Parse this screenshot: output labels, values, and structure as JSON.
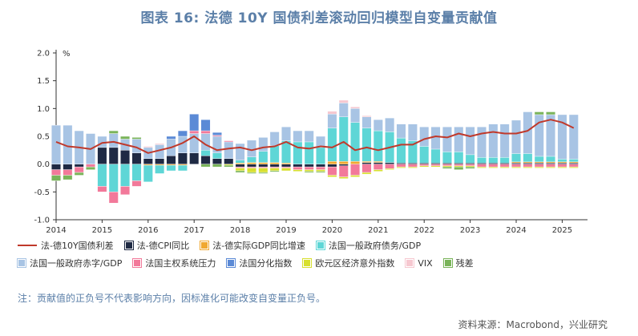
{
  "title": "图表 16: 法德 10Y 国债利差滚动回归模型自变量贡献值",
  "note": "注：贡献值的正负号不代表影响方向，因标准化可能改变自变量正负号。",
  "source": "资料来源：Macrobond，兴业研究",
  "chart_data": {
    "type": "bar",
    "stacked": true,
    "y_unit": "%",
    "ylim": [
      -1.0,
      2.0
    ],
    "yticks": [
      "2.0",
      "1.5",
      "1.0",
      "0.5",
      "0.0",
      "-0.5",
      "-1.0"
    ],
    "x_range": [
      2014.0,
      2025.55
    ],
    "xticks": [
      "2014",
      "2015",
      "2016",
      "2017",
      "2018",
      "2019",
      "2020",
      "2021",
      "2022",
      "2023",
      "2024",
      "2025"
    ],
    "legend": [
      {
        "name": "法-德10Y国债利差",
        "kind": "line",
        "color": "#c0392b"
      },
      {
        "name": "法-德CPI同比",
        "kind": "bar",
        "color": "#1f2a44"
      },
      {
        "name": "法-德实际GDP同比增速",
        "kind": "bar",
        "color": "#f0a830"
      },
      {
        "name": "法国一般政府债务/GDP",
        "kind": "bar",
        "color": "#5ed6d6"
      },
      {
        "name": "法国一般政府赤字/GDP",
        "kind": "bar",
        "color": "#a8c4e4"
      },
      {
        "name": "法国主权系统压力",
        "kind": "bar",
        "color": "#f2799a"
      },
      {
        "name": "法国分化指数",
        "kind": "bar",
        "color": "#5b8ad6"
      },
      {
        "name": "欧元区经济意外指数",
        "kind": "bar",
        "color": "#d8e030"
      },
      {
        "name": "VIX",
        "kind": "bar",
        "color": "#f6c8d0"
      },
      {
        "name": "残差",
        "kind": "bar",
        "color": "#7ab45a"
      }
    ],
    "x": [
      2014.0,
      2014.25,
      2014.5,
      2014.75,
      2015.0,
      2015.25,
      2015.5,
      2015.75,
      2016.0,
      2016.25,
      2016.5,
      2016.75,
      2017.0,
      2017.25,
      2017.5,
      2017.75,
      2018.0,
      2018.25,
      2018.5,
      2018.75,
      2019.0,
      2019.25,
      2019.5,
      2019.75,
      2020.0,
      2020.25,
      2020.5,
      2020.75,
      2021.0,
      2021.25,
      2021.5,
      2021.75,
      2022.0,
      2022.25,
      2022.5,
      2022.75,
      2023.0,
      2023.25,
      2023.5,
      2023.75,
      2024.0,
      2024.25,
      2024.5,
      2024.75,
      2025.0,
      2025.25
    ],
    "spread": [
      0.4,
      0.32,
      0.3,
      0.27,
      0.38,
      0.4,
      0.35,
      0.3,
      0.2,
      0.25,
      0.3,
      0.38,
      0.5,
      0.35,
      0.25,
      0.28,
      0.3,
      0.25,
      0.3,
      0.32,
      0.4,
      0.3,
      0.28,
      0.32,
      0.3,
      0.4,
      0.25,
      0.3,
      0.25,
      0.3,
      0.35,
      0.35,
      0.45,
      0.5,
      0.48,
      0.55,
      0.5,
      0.55,
      0.58,
      0.55,
      0.55,
      0.6,
      0.75,
      0.8,
      0.75,
      0.65
    ],
    "series": [
      {
        "name": "法-德CPI同比",
        "values": [
          -0.1,
          -0.1,
          -0.05,
          0.0,
          0.3,
          0.3,
          0.25,
          0.2,
          0.1,
          0.1,
          0.15,
          0.2,
          0.2,
          0.15,
          0.1,
          0.1,
          -0.05,
          -0.05,
          -0.05,
          -0.05,
          -0.05,
          -0.05,
          -0.05,
          -0.05,
          -0.05,
          -0.03,
          0.0,
          0.03,
          0.03,
          0.03,
          0.02,
          0.02,
          0.02,
          0.02,
          0.02,
          0.02,
          0.02,
          0.02,
          0.02,
          0.02,
          0.02,
          0.02,
          0.02,
          0.02,
          0.02,
          0.02
        ]
      },
      {
        "name": "法-德实际GDP同比增速",
        "values": [
          0.0,
          0.0,
          0.0,
          0.0,
          0.0,
          0.0,
          0.0,
          0.0,
          -0.02,
          -0.02,
          -0.02,
          -0.02,
          0.0,
          0.0,
          0.0,
          0.0,
          0.02,
          0.03,
          0.03,
          0.03,
          0.02,
          0.0,
          0.0,
          0.0,
          0.05,
          0.05,
          0.05,
          0.02,
          0.02,
          0.0,
          0.0,
          0.0,
          0.0,
          0.0,
          0.0,
          0.0,
          0.0,
          0.0,
          0.0,
          0.0,
          0.02,
          0.02,
          0.02,
          0.02,
          0.02,
          0.02
        ]
      },
      {
        "name": "法国一般政府债务/GDP",
        "values": [
          0.0,
          0.0,
          0.0,
          0.0,
          -0.4,
          -0.5,
          -0.4,
          -0.3,
          -0.3,
          -0.15,
          -0.1,
          -0.1,
          0.0,
          0.1,
          0.1,
          0.0,
          0.05,
          0.1,
          0.2,
          0.3,
          0.4,
          0.4,
          0.4,
          0.3,
          0.6,
          0.8,
          0.7,
          0.6,
          0.55,
          0.55,
          0.45,
          0.4,
          0.3,
          0.25,
          0.2,
          0.2,
          0.15,
          0.1,
          0.1,
          0.1,
          0.15,
          0.15,
          0.1,
          0.1,
          0.05,
          0.05
        ]
      },
      {
        "name": "法国一般政府赤字/GDP",
        "values": [
          0.7,
          0.7,
          0.6,
          0.55,
          0.2,
          0.25,
          0.2,
          0.25,
          0.2,
          0.25,
          0.3,
          0.3,
          0.35,
          0.3,
          0.3,
          0.3,
          0.3,
          0.3,
          0.25,
          0.25,
          0.25,
          0.2,
          0.2,
          0.2,
          0.25,
          0.25,
          0.25,
          0.2,
          0.2,
          0.25,
          0.25,
          0.3,
          0.35,
          0.4,
          0.45,
          0.45,
          0.5,
          0.55,
          0.6,
          0.6,
          0.6,
          0.75,
          0.75,
          0.75,
          0.8,
          0.8
        ]
      },
      {
        "name": "法国主权系统压力",
        "values": [
          -0.1,
          -0.1,
          -0.1,
          -0.05,
          -0.1,
          -0.2,
          -0.15,
          -0.1,
          0.0,
          0.0,
          0.0,
          0.0,
          0.05,
          0.05,
          0.02,
          0.02,
          -0.02,
          -0.02,
          -0.02,
          -0.02,
          -0.02,
          -0.05,
          -0.05,
          -0.05,
          -0.15,
          -0.2,
          -0.2,
          -0.15,
          -0.1,
          -0.08,
          -0.05,
          -0.05,
          -0.03,
          -0.03,
          -0.03,
          -0.03,
          -0.03,
          -0.05,
          -0.05,
          -0.05,
          -0.05,
          -0.05,
          -0.05,
          -0.05,
          -0.05,
          -0.05
        ]
      },
      {
        "name": "法国分化指数",
        "values": [
          0.0,
          0.0,
          0.0,
          0.0,
          0.0,
          0.0,
          0.0,
          0.0,
          0.0,
          0.0,
          0.05,
          0.1,
          0.3,
          0.2,
          0.05,
          0.0,
          0.0,
          0.0,
          0.0,
          0.0,
          0.0,
          0.0,
          0.0,
          0.0,
          0.0,
          0.0,
          0.0,
          0.0,
          0.0,
          0.0,
          0.0,
          0.0,
          0.0,
          0.0,
          0.0,
          0.0,
          0.0,
          0.0,
          0.0,
          0.0,
          0.0,
          0.0,
          0.0,
          0.0,
          0.0,
          0.0
        ]
      },
      {
        "name": "欧元区经济意外指数",
        "values": [
          0.0,
          0.0,
          0.0,
          0.0,
          0.0,
          0.0,
          0.0,
          0.0,
          0.0,
          0.0,
          0.0,
          0.0,
          0.0,
          0.0,
          0.0,
          -0.02,
          -0.05,
          -0.08,
          -0.08,
          -0.05,
          -0.05,
          -0.03,
          -0.03,
          -0.03,
          -0.03,
          -0.03,
          -0.03,
          -0.03,
          -0.03,
          -0.02,
          -0.02,
          -0.02,
          -0.02,
          -0.02,
          -0.02,
          -0.02,
          -0.02,
          -0.02,
          -0.02,
          -0.02,
          -0.02,
          -0.02,
          -0.02,
          -0.02,
          -0.02,
          -0.02
        ]
      },
      {
        "name": "VIX",
        "values": [
          0.0,
          0.0,
          0.0,
          0.0,
          0.0,
          0.0,
          0.0,
          0.0,
          0.02,
          0.02,
          0.0,
          0.0,
          0.0,
          0.0,
          0.0,
          0.0,
          0.0,
          0.0,
          0.0,
          0.0,
          0.0,
          0.0,
          0.0,
          0.0,
          0.05,
          0.05,
          0.03,
          0.02,
          0.0,
          0.0,
          0.0,
          0.0,
          0.0,
          0.0,
          0.0,
          0.0,
          0.0,
          0.0,
          0.0,
          0.0,
          0.0,
          0.0,
          0.0,
          0.0,
          0.0,
          0.0
        ]
      },
      {
        "name": "残差",
        "values": [
          -0.1,
          -0.08,
          -0.05,
          -0.05,
          0.0,
          0.05,
          0.05,
          0.03,
          0.0,
          0.0,
          0.0,
          0.0,
          0.0,
          -0.05,
          -0.05,
          -0.03,
          -0.03,
          -0.02,
          -0.02,
          -0.02,
          0.0,
          0.0,
          -0.02,
          -0.02,
          0.0,
          0.0,
          0.0,
          0.0,
          0.0,
          0.0,
          0.0,
          0.0,
          0.0,
          0.0,
          -0.03,
          -0.05,
          -0.03,
          0.0,
          0.0,
          0.0,
          0.0,
          0.0,
          0.05,
          0.05,
          0.0,
          0.0
        ]
      }
    ]
  }
}
